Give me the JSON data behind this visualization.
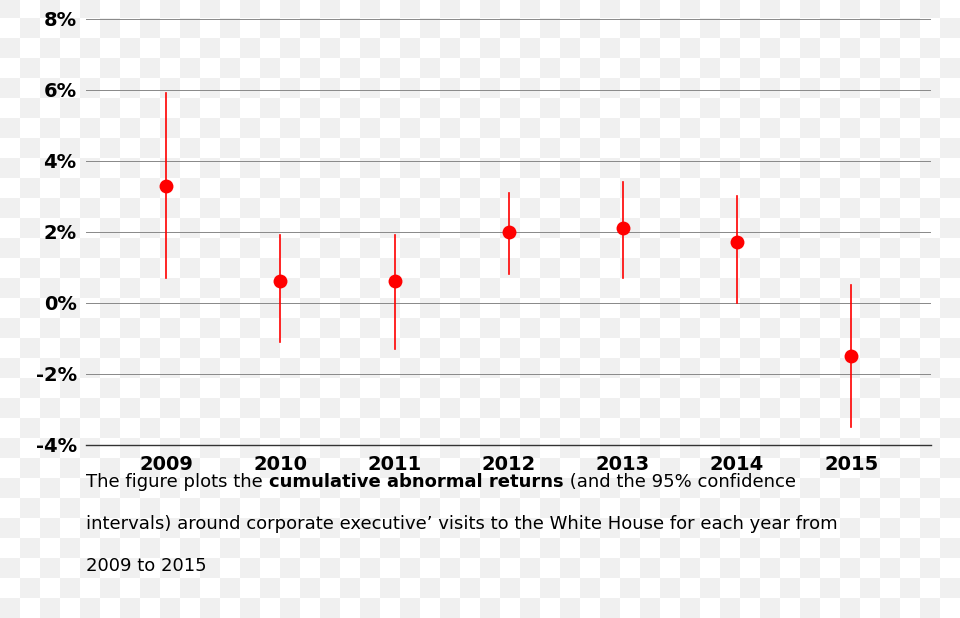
{
  "years": [
    2009,
    2010,
    2011,
    2012,
    2013,
    2014,
    2015
  ],
  "values": [
    3.3,
    0.6,
    0.6,
    2.0,
    2.1,
    1.7,
    -1.5
  ],
  "ci_upper": [
    5.9,
    1.9,
    1.9,
    3.1,
    3.4,
    3.0,
    0.5
  ],
  "ci_lower": [
    0.7,
    -1.1,
    -1.3,
    0.8,
    0.7,
    0.0,
    -3.5
  ],
  "dot_color": "#ff0000",
  "line_color": "#ff0000",
  "dot_size": 100,
  "ylim": [
    -4,
    8
  ],
  "yticks": [
    -4,
    -2,
    0,
    2,
    4,
    6,
    8
  ],
  "ytick_labels": [
    "-4%",
    "-2%",
    "0%",
    "2%",
    "4%",
    "6%",
    "8%"
  ],
  "checker_light": "#f0f0f0",
  "checker_dark": "#ffffff",
  "grid_color": "#888888",
  "font_size": 14,
  "caption_font_size": 13,
  "checker_size": 20
}
